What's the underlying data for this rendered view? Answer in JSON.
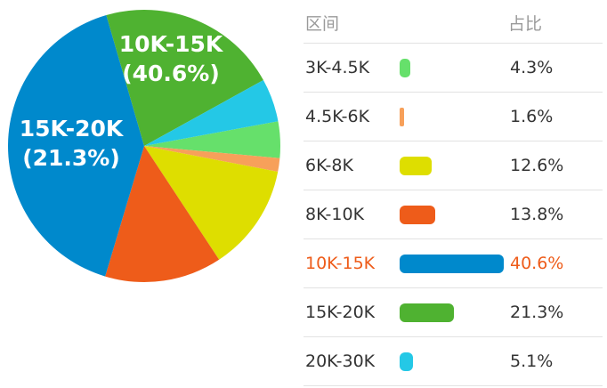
{
  "table": {
    "header_range": "区间",
    "header_share": "占比"
  },
  "highlight_index": 4,
  "chart_data": {
    "type": "pie",
    "categories": [
      "3K-4.5K",
      "4.5K-6K",
      "6K-8K",
      "8K-10K",
      "10K-15K",
      "15K-20K",
      "20K-30K"
    ],
    "values": [
      4.3,
      1.6,
      12.6,
      13.8,
      40.6,
      21.3,
      5.1
    ],
    "value_labels": [
      "4.3%",
      "1.6%",
      "12.6%",
      "13.8%",
      "40.6%",
      "21.3%",
      "5.1%"
    ],
    "colors": [
      "#66e06b",
      "#f7a05a",
      "#dede00",
      "#ee5c1a",
      "#0089cc",
      "#4fb231",
      "#24c8e6"
    ],
    "slice_labels": [
      {
        "index": 4,
        "line1": "10K-15K",
        "line2": "(40.6%)"
      },
      {
        "index": 5,
        "line1": "15K-20K",
        "line2": "(21.3%)"
      }
    ]
  }
}
